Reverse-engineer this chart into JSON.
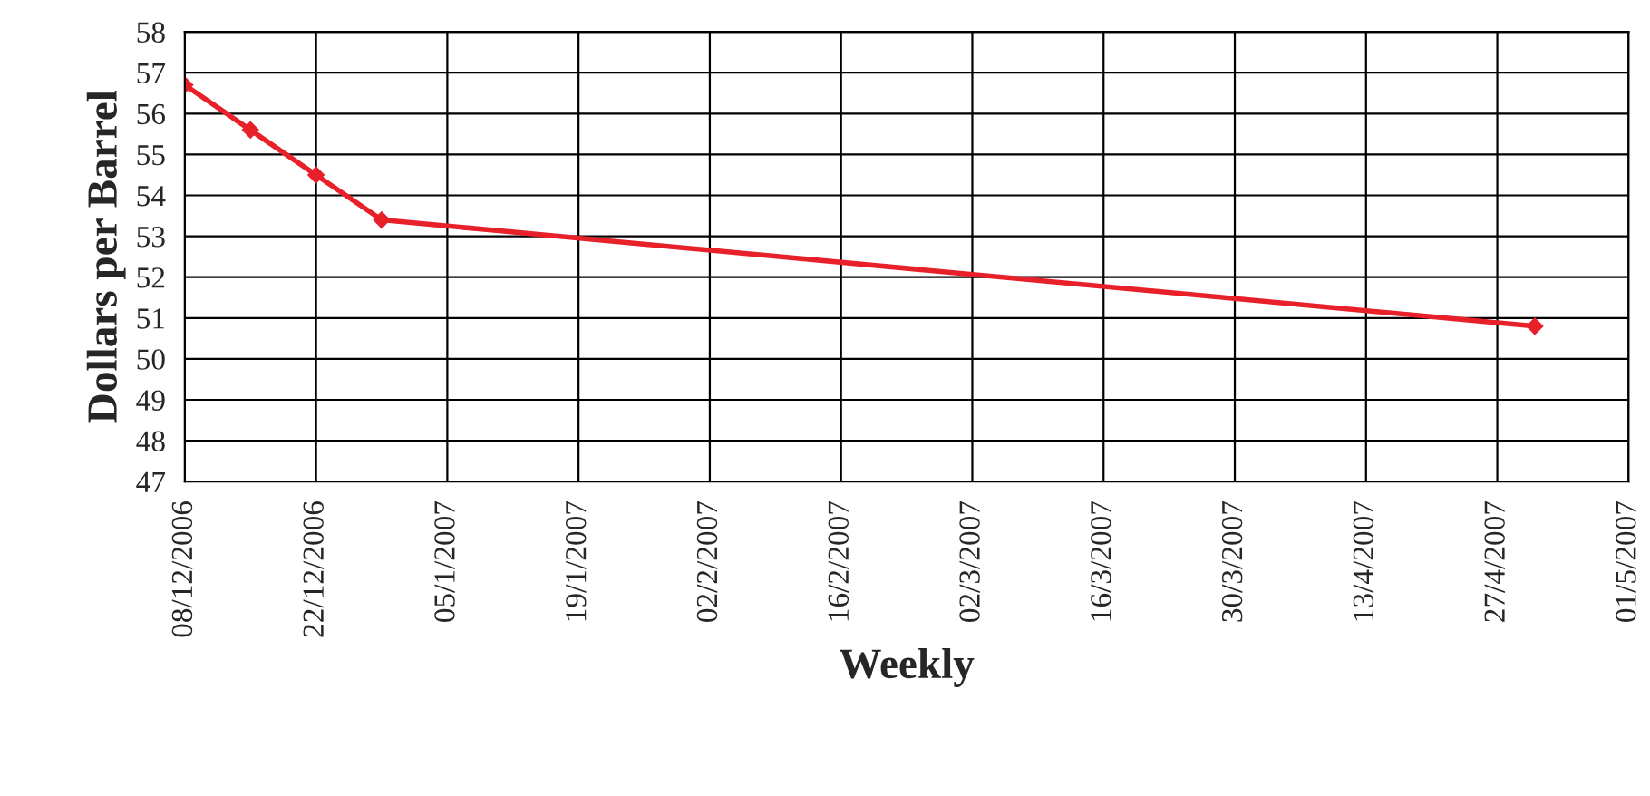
{
  "chart_data": {
    "type": "line",
    "xlabel": "Weekly",
    "ylabel": "Dollars per Barrel",
    "x": [
      "2006-12-08",
      "2006-12-15",
      "2006-12-22",
      "2006-12-29",
      "2007-05-01"
    ],
    "series": [
      {
        "color": "#e8202a",
        "values": [
          56.7,
          55.6,
          54.5,
          53.4,
          50.8
        ]
      }
    ],
    "xlim": [
      "2006-12-08",
      "2007-05-11"
    ],
    "xticks": [
      {
        "value": "2006-12-08",
        "label": "08/12/2006"
      },
      {
        "value": "2006-12-22",
        "label": "22/12/2006"
      },
      {
        "value": "2007-01-05",
        "label": "05/1/2007"
      },
      {
        "value": "2007-01-19",
        "label": "19/1/2007"
      },
      {
        "value": "2007-02-02",
        "label": "02/2/2007"
      },
      {
        "value": "2007-02-16",
        "label": "16/2/2007"
      },
      {
        "value": "2007-03-02",
        "label": "02/3/2007"
      },
      {
        "value": "2007-03-16",
        "label": "16/3/2007"
      },
      {
        "value": "2007-03-30",
        "label": "30/3/2007"
      },
      {
        "value": "2007-04-13",
        "label": "13/4/2007"
      },
      {
        "value": "2007-04-27",
        "label": "27/4/2007"
      },
      {
        "value": "2007-05-11",
        "label": "01/5/2007"
      }
    ],
    "ylim": [
      47,
      58
    ],
    "yticks": [
      47,
      48,
      49,
      50,
      51,
      52,
      53,
      54,
      55,
      56,
      57,
      58
    ],
    "grid": true,
    "marker": "diamond",
    "line_style": "solid",
    "legend": false
  }
}
